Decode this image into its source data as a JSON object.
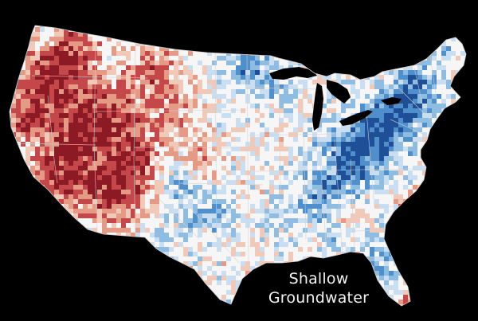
{
  "map": {
    "background": "#000000",
    "land_color": "#f6f6f6",
    "boundary_color": "#d2d2d2",
    "color_scale": {
      "dry_strong": "#8c1a24",
      "dry_medium": "#c4484a",
      "dry_light": "#e59a86",
      "dry_faint": "#f1c9b8",
      "neutral": "#f6f6f6",
      "wet_faint": "#c9def0",
      "wet_light": "#8fbde2",
      "wet_medium": "#4f8fcc",
      "wet_strong": "#1f4f96"
    }
  },
  "caption": {
    "line1": "Shallow",
    "line2": "Groundwater"
  }
}
